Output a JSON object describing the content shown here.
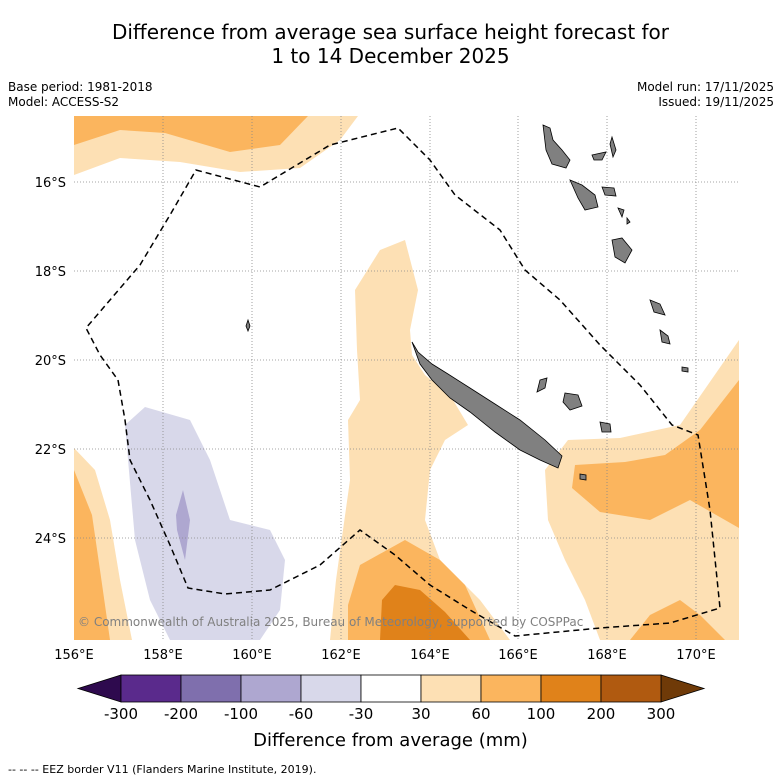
{
  "title_line1": "Difference from average sea surface height forecast for",
  "title_line2": "1 to 14 December 2025",
  "base_period": "Base period: 1981-2018",
  "model": "Model: ACCESS-S2",
  "model_run": "Model run: 17/11/2025",
  "issued": "Issued: 19/11/2025",
  "copyright": "© Commonwealth of Australia 2025, Bureau of Meteorology, supported by COSPPac",
  "lon_labels": [
    "156°E",
    "158°E",
    "160°E",
    "162°E",
    "164°E",
    "166°E",
    "168°E",
    "170°E"
  ],
  "lat_labels": [
    "16°S",
    "18°S",
    "20°S",
    "22°S",
    "24°S"
  ],
  "colorbar": {
    "title": "Difference from average (mm)",
    "ticks": [
      "-300",
      "-200",
      "-100",
      "-60",
      "-30",
      "30",
      "60",
      "100",
      "200",
      "300"
    ],
    "colors": [
      "#5a2a8c",
      "#7f6fad",
      "#aea7d0",
      "#d8d8ea",
      "#ffffff",
      "#fde0b4",
      "#fbb55e",
      "#e0821a",
      "#b05a10"
    ],
    "under_color": "#2e0a4e",
    "over_color": "#6f3a08"
  },
  "footer": "--  --  -- EEZ border V11 (Flanders Marine Institute, 2019)."
}
